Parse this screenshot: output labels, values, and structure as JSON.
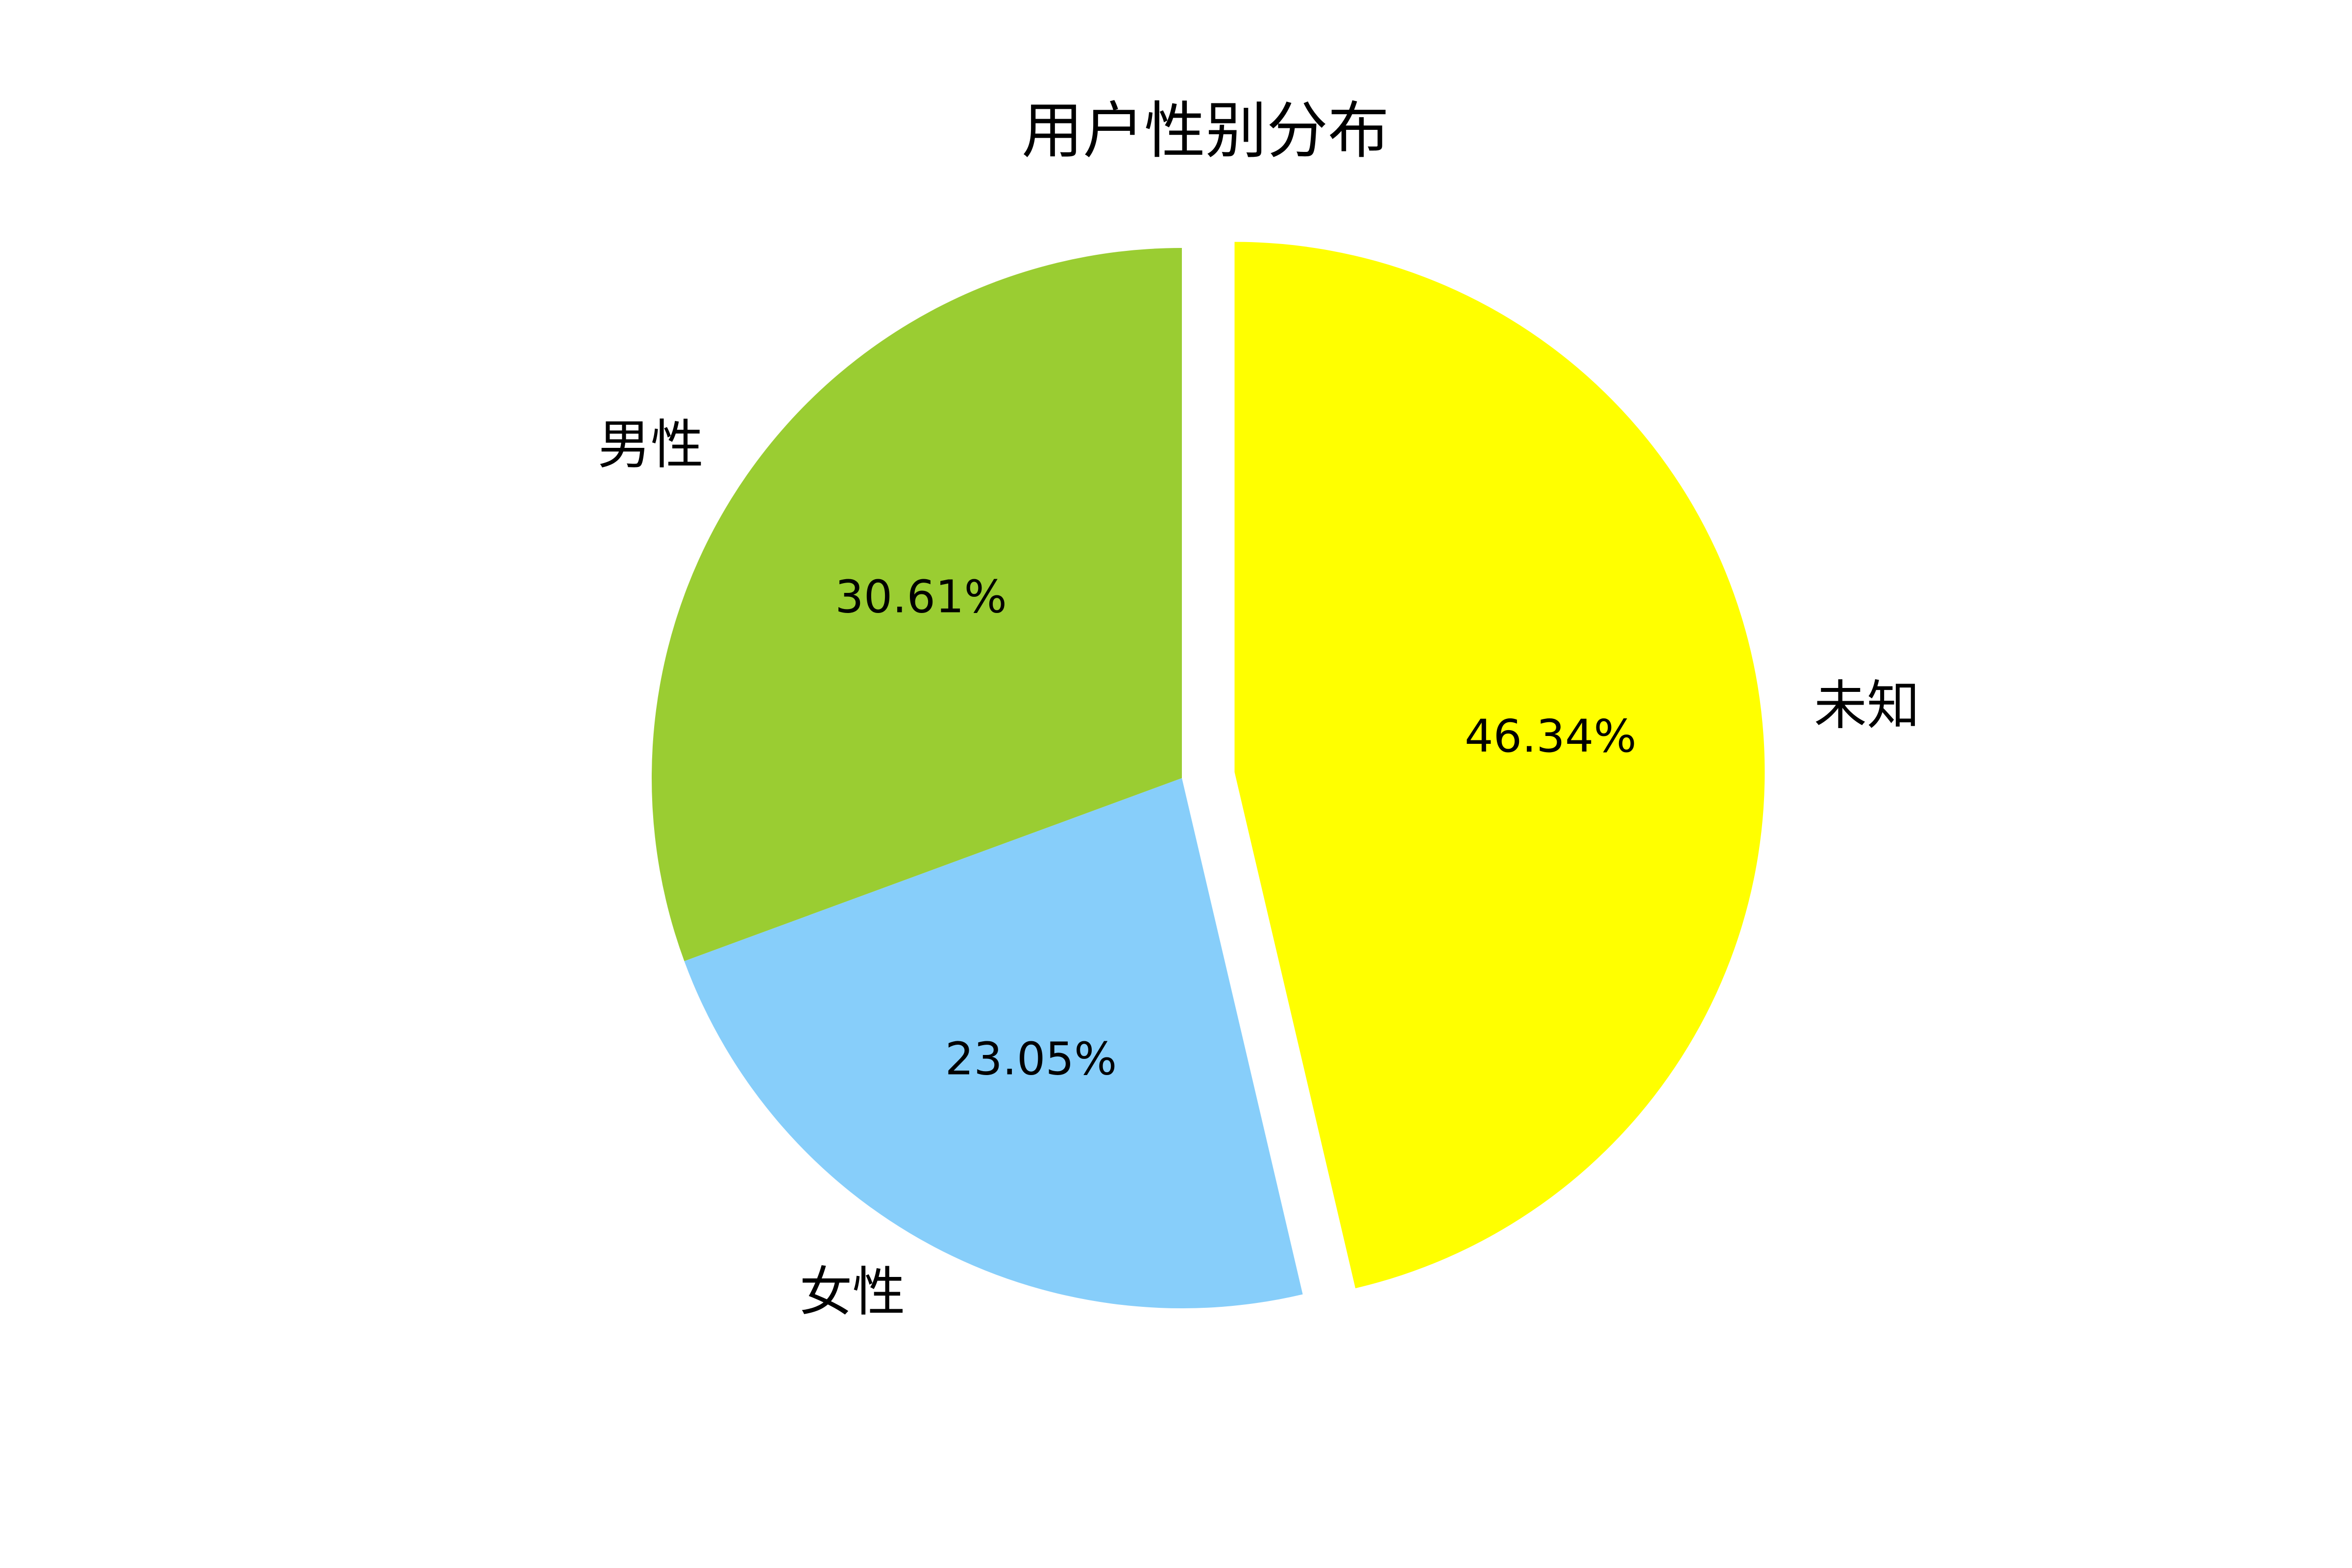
{
  "chart_data": {
    "type": "pie",
    "title": "用户性别分布",
    "categories": [
      "男性",
      "女性",
      "未知"
    ],
    "values": [
      30.61,
      23.05,
      46.34
    ],
    "value_labels": [
      "30.61%",
      "23.05%",
      "46.34%"
    ],
    "colors": [
      "#9ACD32",
      "#87CEFA",
      "#FFFF00"
    ],
    "explode": [
      0,
      0,
      0.1
    ],
    "start_angle_deg": 90,
    "direction": "counterclockwise"
  }
}
